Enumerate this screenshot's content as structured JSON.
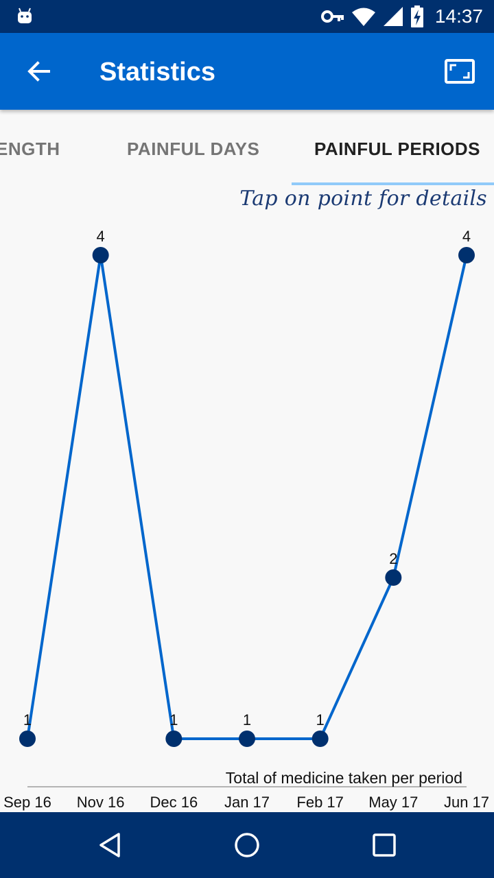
{
  "status_bar": {
    "time": "14:37",
    "icons": [
      "android-icon",
      "key-icon",
      "wifi-icon",
      "signal-icon",
      "battery-charging-icon"
    ]
  },
  "app_bar": {
    "title": "Statistics",
    "back_icon": "arrow-back-icon",
    "fullscreen_icon": "fullscreen-icon",
    "background": "#0066cc"
  },
  "tabs": [
    {
      "label": "ENGTH",
      "active": false
    },
    {
      "label": "PAINFUL DAYS",
      "active": false
    },
    {
      "label": "PAINFUL PERIODS",
      "active": true
    }
  ],
  "hint": "Tap on point for details",
  "chart_data": {
    "type": "line",
    "categories": [
      "Sep 16",
      "Nov 16",
      "Dec 16",
      "Jan 17",
      "Feb 17",
      "May 17",
      "Jun 17"
    ],
    "values": [
      1,
      4,
      1,
      1,
      1,
      2,
      4
    ],
    "title": "Total of medicine taken per period",
    "xlabel": "",
    "ylabel": "",
    "ylim": [
      1,
      4
    ],
    "line_color": "#0066cc",
    "point_color": "#00306e",
    "grid": false,
    "data_labels": true
  },
  "nav_bar": {
    "icons": [
      "back-triangle-icon",
      "home-circle-icon",
      "recents-square-icon"
    ]
  }
}
